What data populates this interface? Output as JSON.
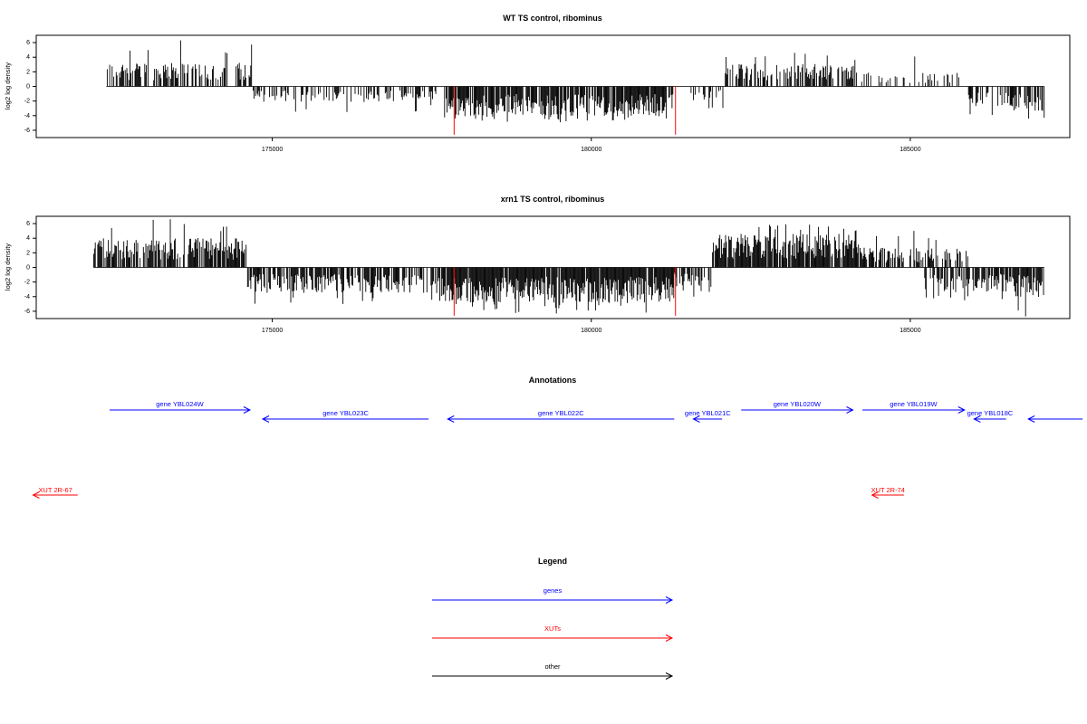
{
  "colors": {
    "gene": "#0000ff",
    "xut": "#ff0000",
    "other": "#000000",
    "axis": "#000000"
  },
  "chart_data": [
    {
      "type": "bar",
      "title": "WT TS control, ribominus",
      "ylabel": "log2 log density",
      "xlim": [
        171300,
        187500
      ],
      "ylim": [
        -7,
        7
      ],
      "x_ticks": [
        175000,
        180000,
        185000
      ],
      "x_tick_labels": [
        "175000",
        "180000",
        "185000"
      ],
      "y_ticks": [
        -6,
        -4,
        -2,
        0,
        2,
        4,
        6
      ],
      "y_tick_labels": [
        "-6",
        "-4",
        "-2",
        "0",
        "2",
        "4",
        "6"
      ],
      "baseline_from": 172400,
      "baseline_to": 187100,
      "segments": [
        {
          "from": 172400,
          "to": 174700,
          "sign": 1,
          "peak": 6.3,
          "typical": 2.4,
          "density": 0.55
        },
        {
          "from": 174700,
          "to": 177600,
          "sign": -1,
          "peak": 3.5,
          "typical": 1.6,
          "density": 0.45
        },
        {
          "from": 177700,
          "to": 181300,
          "sign": -1,
          "peak": 4.9,
          "typical": 3.0,
          "density": 0.85
        },
        {
          "from": 181500,
          "to": 182100,
          "sign": -1,
          "peak": 3.0,
          "typical": 1.4,
          "density": 0.35
        },
        {
          "from": 182100,
          "to": 184200,
          "sign": 1,
          "peak": 4.6,
          "typical": 2.3,
          "density": 0.55
        },
        {
          "from": 184200,
          "to": 185900,
          "sign": 1,
          "peak": 4.1,
          "typical": 1.4,
          "density": 0.25
        },
        {
          "from": 185900,
          "to": 186600,
          "sign": -1,
          "peak": 3.9,
          "typical": 2.0,
          "density": 0.5
        },
        {
          "from": 186600,
          "to": 187100,
          "sign": -1,
          "peak": 4.4,
          "typical": 2.5,
          "density": 0.55
        }
      ],
      "red_markers": [
        {
          "x": 177850,
          "y": -6.6
        },
        {
          "x": 181320,
          "y": -6.6
        }
      ]
    },
    {
      "type": "bar",
      "title": "xrn1 TS control, ribominus",
      "ylabel": "log2 log density",
      "xlim": [
        171300,
        187500
      ],
      "ylim": [
        -7,
        7
      ],
      "x_ticks": [
        175000,
        180000,
        185000
      ],
      "x_tick_labels": [
        "175000",
        "180000",
        "185000"
      ],
      "y_ticks": [
        -6,
        -4,
        -2,
        0,
        2,
        4,
        6
      ],
      "y_tick_labels": [
        "-6",
        "-4",
        "-2",
        "0",
        "2",
        "4",
        "6"
      ],
      "baseline_from": 172200,
      "baseline_to": 187100,
      "segments": [
        {
          "from": 172200,
          "to": 174600,
          "sign": 1,
          "peak": 6.6,
          "typical": 3.0,
          "density": 0.75
        },
        {
          "from": 174600,
          "to": 177600,
          "sign": -1,
          "peak": 5.0,
          "typical": 2.6,
          "density": 0.7
        },
        {
          "from": 177600,
          "to": 181300,
          "sign": -1,
          "peak": 6.3,
          "typical": 3.6,
          "density": 0.95
        },
        {
          "from": 181300,
          "to": 181900,
          "sign": -1,
          "peak": 4.0,
          "typical": 2.0,
          "density": 0.6
        },
        {
          "from": 181900,
          "to": 184200,
          "sign": 1,
          "peak": 5.9,
          "typical": 3.4,
          "density": 0.9
        },
        {
          "from": 184200,
          "to": 185900,
          "sign": 1,
          "peak": 5.0,
          "typical": 2.0,
          "density": 0.55
        },
        {
          "from": 185200,
          "to": 186500,
          "sign": -1,
          "peak": 4.5,
          "typical": 2.5,
          "density": 0.65
        },
        {
          "from": 186500,
          "to": 187100,
          "sign": -1,
          "peak": 6.7,
          "typical": 3.0,
          "density": 0.85
        }
      ],
      "red_markers": [
        {
          "x": 177850,
          "y": -6.6
        },
        {
          "x": 181320,
          "y": -6.6
        }
      ]
    }
  ],
  "annotations": {
    "title": "Annotations",
    "genes": [
      {
        "label": "gene YBL024W",
        "start": 172450,
        "end": 174650,
        "strand": "+",
        "row": 0
      },
      {
        "label": "gene YBL023C",
        "start": 174850,
        "end": 177450,
        "strand": "-",
        "row": 1
      },
      {
        "label": "gene YBL022C",
        "start": 177750,
        "end": 181300,
        "strand": "-",
        "row": 1
      },
      {
        "label": "gene YBL021C",
        "start": 181600,
        "end": 182050,
        "strand": "-",
        "row": 1
      },
      {
        "label": "gene YBL020W",
        "start": 182350,
        "end": 184100,
        "strand": "+",
        "row": 0
      },
      {
        "label": "gene YBL019W",
        "start": 184250,
        "end": 185850,
        "strand": "+",
        "row": 0
      },
      {
        "label": "gene YBL018C",
        "start": 186000,
        "end": 186500,
        "strand": "-",
        "row": 1
      },
      {
        "label": "",
        "start": 186850,
        "end": 187700,
        "strand": "-",
        "row": 1
      }
    ],
    "xuts": [
      {
        "label": "XUT 2R-67",
        "start": 171250,
        "end": 171950,
        "strand": "-"
      },
      {
        "label": "XUT 2R-74",
        "start": 184400,
        "end": 184900,
        "strand": "-"
      }
    ]
  },
  "legend": {
    "title": "Legend",
    "items": [
      {
        "label": "genes",
        "kind": "gene"
      },
      {
        "label": "XUTs",
        "kind": "xut"
      },
      {
        "label": "other",
        "kind": "other"
      }
    ]
  }
}
